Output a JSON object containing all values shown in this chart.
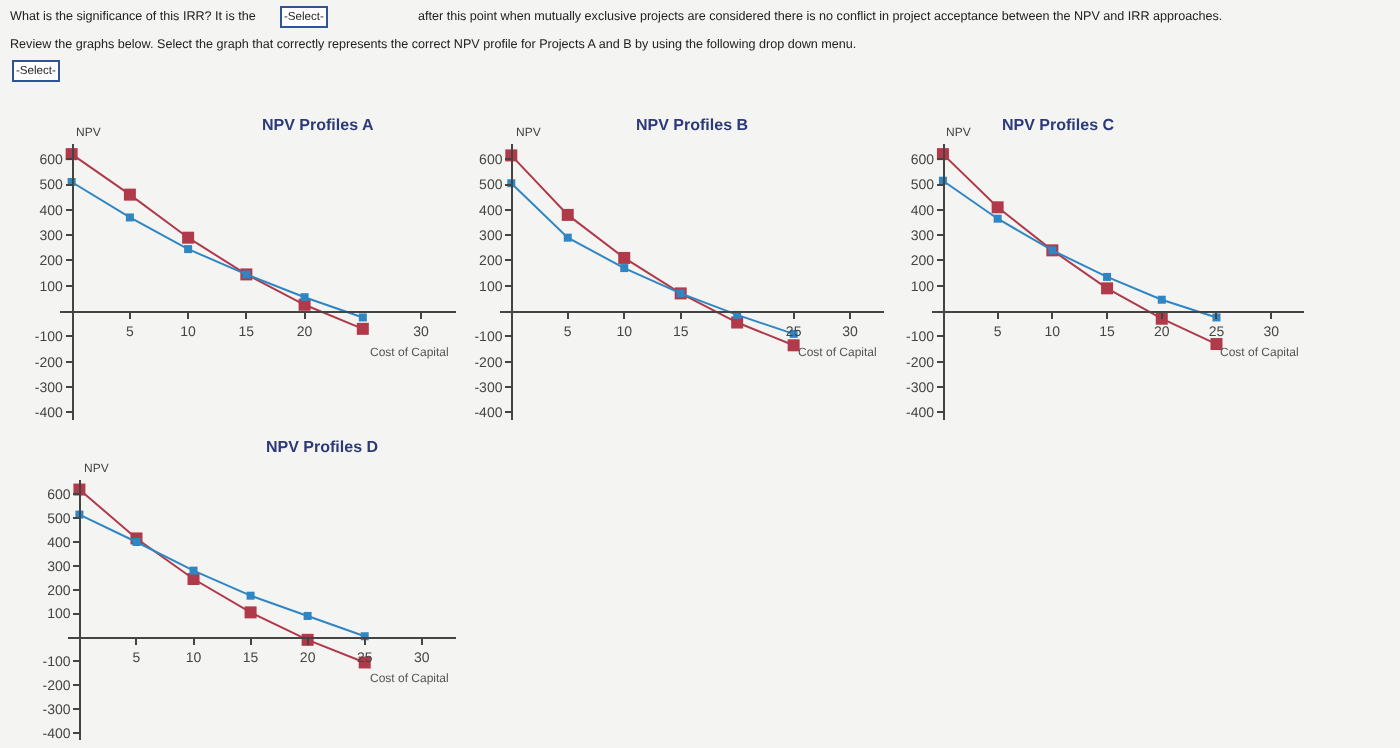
{
  "chart_data": [
    {
      "type": "line",
      "title": "NPV Profiles A",
      "xlabel": "Cost of Capital",
      "ylabel": "NPV",
      "x": [
        0,
        5,
        10,
        15,
        20,
        25
      ],
      "series": [
        {
          "color": "#b0394a",
          "values": [
            620,
            460,
            290,
            145,
            25,
            -70
          ]
        },
        {
          "color": "#2f86c3",
          "values": [
            510,
            370,
            245,
            145,
            55,
            -25
          ]
        }
      ],
      "xlim": [
        -1,
        33
      ],
      "xticks": [
        5,
        10,
        15,
        20,
        30
      ],
      "ylim": [
        -430,
        660
      ],
      "yticks": [
        -400,
        -300,
        -200,
        -100,
        100,
        200,
        300,
        400,
        500,
        600
      ],
      "marker": "square",
      "line_style": "solid",
      "annotations": [
        "What is the significance of this IRR? It is the",
        "-Select-",
        "after this point when mutually exclusive projects are considered there is no conflict in project acceptance between the NPV and IRR approaches.",
        "Review the graphs below. Select the graph that correctly represents the correct NPV profile for Projects A and B by using the following drop down menu.",
        "-Select-"
      ]
    },
    {
      "type": "line",
      "title": "NPV Profiles B",
      "xlabel": "Cost of Capital",
      "ylabel": "NPV",
      "x": [
        0,
        5,
        10,
        15,
        20,
        25
      ],
      "series": [
        {
          "color": "#b0394a",
          "values": [
            615,
            380,
            210,
            70,
            -45,
            -135
          ]
        },
        {
          "color": "#2f86c3",
          "values": [
            505,
            290,
            170,
            70,
            -15,
            -90
          ]
        }
      ],
      "xlim": [
        -1,
        33
      ],
      "xticks": [
        5,
        10,
        15,
        25,
        30
      ],
      "ylim": [
        -430,
        660
      ],
      "yticks": [
        -400,
        -300,
        -200,
        -100,
        100,
        200,
        300,
        400,
        500,
        600
      ],
      "marker": "square",
      "line_style": "solid"
    },
    {
      "type": "line",
      "title": "NPV Profiles C",
      "xlabel": "Cost of Capital",
      "ylabel": "NPV",
      "x": [
        0,
        5,
        10,
        15,
        20,
        25
      ],
      "series": [
        {
          "color": "#b0394a",
          "values": [
            620,
            410,
            240,
            90,
            -30,
            -130
          ]
        },
        {
          "color": "#2f86c3",
          "values": [
            515,
            365,
            240,
            135,
            45,
            -25
          ]
        }
      ],
      "xlim": [
        -1,
        33
      ],
      "xticks": [
        5,
        10,
        15,
        20,
        25,
        30
      ],
      "ylim": [
        -430,
        660
      ],
      "yticks": [
        -400,
        -300,
        -200,
        -100,
        100,
        200,
        300,
        400,
        500,
        600
      ],
      "marker": "square",
      "line_style": "solid"
    },
    {
      "type": "line",
      "title": "NPV Profiles D",
      "xlabel": "Cost of Capital",
      "ylabel": "NPV",
      "x": [
        0,
        5,
        10,
        15,
        20,
        25
      ],
      "series": [
        {
          "color": "#b0394a",
          "values": [
            620,
            415,
            245,
            105,
            -10,
            -105
          ]
        },
        {
          "color": "#2f86c3",
          "values": [
            515,
            400,
            280,
            175,
            90,
            5
          ]
        }
      ],
      "xlim": [
        -1,
        33
      ],
      "xticks": [
        5,
        10,
        15,
        20,
        25,
        30
      ],
      "ylim": [
        -430,
        660
      ],
      "yticks": [
        -400,
        -300,
        -200,
        -100,
        100,
        200,
        300,
        400,
        500,
        600
      ],
      "marker": "square",
      "line_style": "solid"
    }
  ]
}
